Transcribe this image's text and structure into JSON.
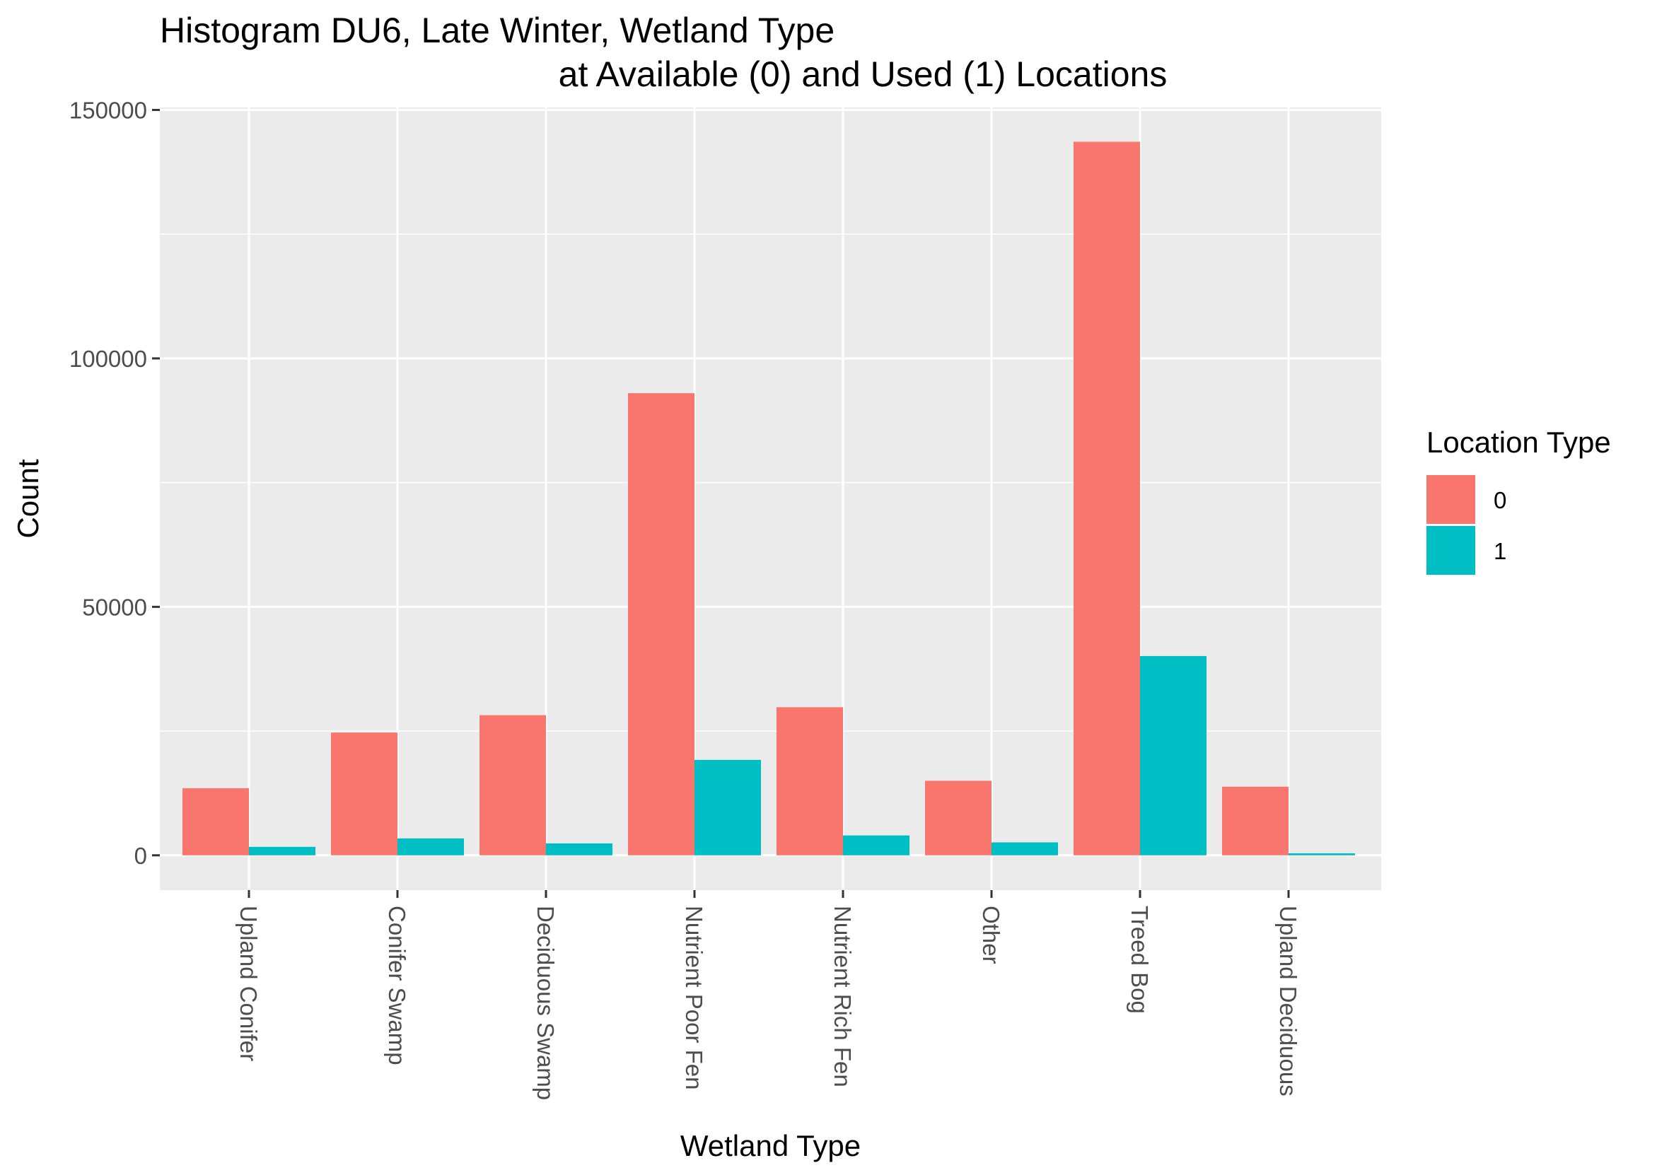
{
  "chart_data": {
    "type": "bar",
    "title": "Histogram DU6, Late Winter, Wetland Type",
    "subtitle": "at Available (0) and Used (1) Locations",
    "xlabel": "Wetland Type",
    "ylabel": "Count",
    "ylim": [
      -7000,
      150500
    ],
    "yticks": [
      0,
      50000,
      100000,
      150000
    ],
    "ytick_labels": [
      "0",
      "50000",
      "100000",
      "150000"
    ],
    "categories": [
      "Upland Conifer",
      "Conifer Swamp",
      "Deciduous Swamp",
      "Nutrient Poor Fen",
      "Nutrient Rich Fen",
      "Other",
      "Treed Bog",
      "Upland Deciduous"
    ],
    "series": [
      {
        "name": "0",
        "color": "#F8766D",
        "values": [
          13500,
          24700,
          28200,
          93000,
          29800,
          15000,
          143600,
          13800
        ]
      },
      {
        "name": "1",
        "color": "#00BFC4",
        "values": [
          1700,
          3400,
          2400,
          19200,
          4000,
          2600,
          40100,
          400
        ]
      }
    ],
    "legend": {
      "title": "Location Type",
      "position": "right"
    },
    "grid": true
  }
}
